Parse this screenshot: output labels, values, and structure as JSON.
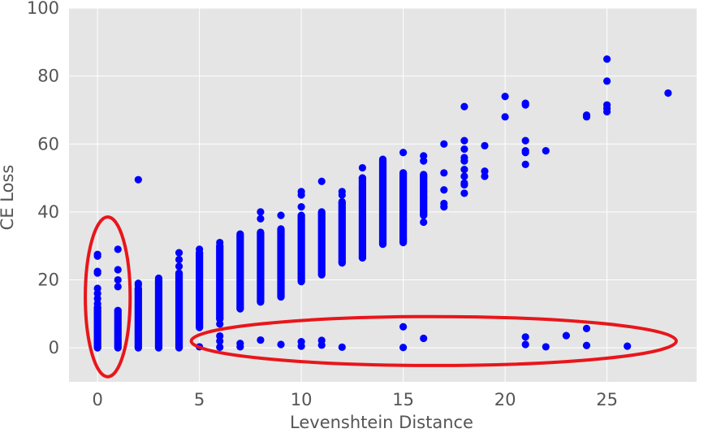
{
  "chart_data": {
    "type": "scatter",
    "title": "",
    "xlabel": "Levenshtein Distance",
    "ylabel": "CE Loss",
    "xlim": [
      -1.4,
      29.4
    ],
    "ylim": [
      -10,
      100
    ],
    "xticks": [
      0,
      5,
      10,
      15,
      20,
      25
    ],
    "yticks": [
      0,
      20,
      40,
      60,
      80,
      100
    ],
    "grid": true,
    "style": "ggplot",
    "point_color": "#0000ff",
    "annotation_color": "#e8161b",
    "bands": [
      {
        "x": 0,
        "min": 0,
        "max": 12
      },
      {
        "x": 1,
        "min": 0,
        "max": 11
      },
      {
        "x": 2,
        "min": 0,
        "max": 17.5
      },
      {
        "x": 3,
        "min": 0,
        "max": 20
      },
      {
        "x": 4,
        "min": 0,
        "max": 22
      },
      {
        "x": 5,
        "min": 6,
        "max": 28
      },
      {
        "x": 6,
        "min": 8.5,
        "max": 30
      },
      {
        "x": 7,
        "min": 11.5,
        "max": 33
      },
      {
        "x": 8,
        "min": 13.5,
        "max": 34
      },
      {
        "x": 9,
        "min": 15,
        "max": 35
      },
      {
        "x": 10,
        "min": 19.5,
        "max": 39
      },
      {
        "x": 11,
        "min": 21.5,
        "max": 40
      },
      {
        "x": 12,
        "min": 25,
        "max": 43
      },
      {
        "x": 13,
        "min": 26.5,
        "max": 50
      },
      {
        "x": 14,
        "min": 30.5,
        "max": 55
      },
      {
        "x": 15,
        "min": 31,
        "max": 51.5
      },
      {
        "x": 16,
        "min": 39,
        "max": 51
      }
    ],
    "points": [
      [
        0,
        27.5
      ],
      [
        0,
        27
      ],
      [
        0,
        22.5
      ],
      [
        0,
        22
      ],
      [
        0,
        17.5
      ],
      [
        0,
        16
      ],
      [
        0,
        14.5
      ],
      [
        0,
        13
      ],
      [
        1,
        29
      ],
      [
        1,
        23
      ],
      [
        1,
        20
      ],
      [
        1,
        18
      ],
      [
        2,
        49.5
      ],
      [
        2,
        19
      ],
      [
        2,
        18.5
      ],
      [
        3,
        20.5
      ],
      [
        4,
        28
      ],
      [
        4,
        26
      ],
      [
        4,
        24
      ],
      [
        4,
        0.2
      ],
      [
        5,
        29
      ],
      [
        5,
        0.3
      ],
      [
        6,
        31
      ],
      [
        6,
        7
      ],
      [
        6,
        3.5
      ],
      [
        6,
        2
      ],
      [
        6,
        0.2
      ],
      [
        7,
        33.5
      ],
      [
        7,
        1.3
      ],
      [
        7,
        0.3
      ],
      [
        8,
        40
      ],
      [
        8,
        38
      ],
      [
        8,
        2.3
      ],
      [
        9,
        39
      ],
      [
        9,
        1
      ],
      [
        10,
        46
      ],
      [
        10,
        45
      ],
      [
        10,
        41.5
      ],
      [
        10,
        1.8
      ],
      [
        10,
        0.5
      ],
      [
        11,
        49
      ],
      [
        11,
        2.2
      ],
      [
        11,
        0.8
      ],
      [
        12,
        46
      ],
      [
        12,
        45
      ],
      [
        12,
        0.2
      ],
      [
        13,
        53
      ],
      [
        13,
        50
      ],
      [
        13,
        47
      ],
      [
        13,
        26.5
      ],
      [
        14,
        55.5
      ],
      [
        14,
        53.5
      ],
      [
        14,
        31
      ],
      [
        15,
        57.5
      ],
      [
        15,
        51.5
      ],
      [
        15,
        40
      ],
      [
        15,
        37.5
      ],
      [
        15,
        32
      ],
      [
        15,
        6.2
      ],
      [
        15,
        0.1
      ],
      [
        16,
        56.5
      ],
      [
        16,
        55
      ],
      [
        16,
        50.5
      ],
      [
        16,
        46
      ],
      [
        16,
        44
      ],
      [
        16,
        40
      ],
      [
        16,
        37
      ],
      [
        16,
        2.8
      ],
      [
        17,
        60
      ],
      [
        17,
        51.5
      ],
      [
        17,
        46.5
      ],
      [
        17,
        42.5
      ],
      [
        17,
        41.5
      ],
      [
        18,
        71
      ],
      [
        18,
        61
      ],
      [
        18,
        58.5
      ],
      [
        18,
        56
      ],
      [
        18,
        55
      ],
      [
        18,
        52.5
      ],
      [
        18,
        50.5
      ],
      [
        18,
        48.5
      ],
      [
        18,
        48
      ],
      [
        18,
        45.5
      ],
      [
        19,
        59.5
      ],
      [
        19,
        52
      ],
      [
        19,
        50.5
      ],
      [
        20,
        74
      ],
      [
        20,
        68
      ],
      [
        21,
        72
      ],
      [
        21,
        71.5
      ],
      [
        21,
        61
      ],
      [
        21,
        58
      ],
      [
        21,
        57.5
      ],
      [
        21,
        54
      ],
      [
        21,
        3.2
      ],
      [
        21,
        1
      ],
      [
        22,
        58
      ],
      [
        22,
        0.3
      ],
      [
        23,
        3.6
      ],
      [
        24,
        68.5
      ],
      [
        24,
        68
      ],
      [
        24,
        5.7
      ],
      [
        24,
        0.7
      ],
      [
        25,
        85
      ],
      [
        25,
        78.5
      ],
      [
        25,
        71.5
      ],
      [
        25,
        70.5
      ],
      [
        25,
        69.5
      ],
      [
        26,
        0.5
      ],
      [
        28,
        75
      ]
    ],
    "annotations": [
      {
        "shape": "ellipse",
        "cx": 0.5,
        "cy": 15,
        "rx": 1.1,
        "ry": 23.5
      },
      {
        "shape": "ellipse",
        "cx": 16.5,
        "cy": 2,
        "rx": 11.9,
        "ry": 7.2
      }
    ]
  }
}
